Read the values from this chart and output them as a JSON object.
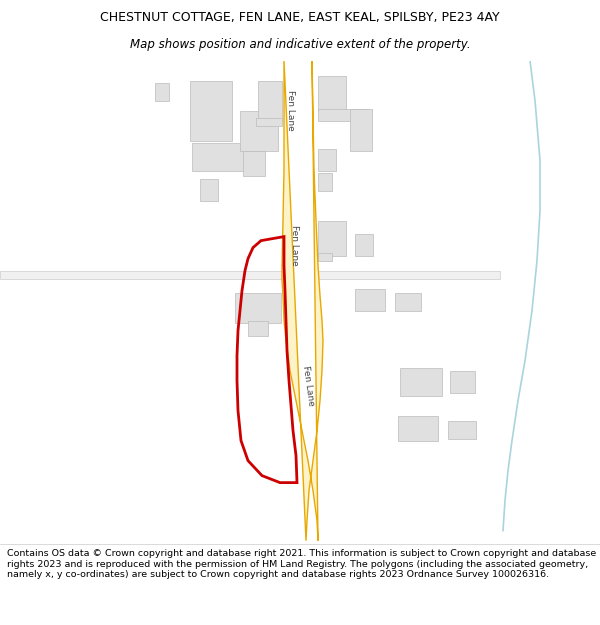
{
  "title": "CHESTNUT COTTAGE, FEN LANE, EAST KEAL, SPILSBY, PE23 4AY",
  "subtitle": "Map shows position and indicative extent of the property.",
  "footer": "Contains OS data © Crown copyright and database right 2021. This information is subject to Crown copyright and database rights 2023 and is reproduced with the permission of HM Land Registry. The polygons (including the associated geometry, namely x, y co-ordinates) are subject to Crown copyright and database rights 2023 Ordnance Survey 100026316.",
  "bg_color": "#ffffff",
  "map_bg": "#ffffff",
  "road_fill": "#fdf3c8",
  "road_edge": "#e8a800",
  "building_fill": "#e0e0e0",
  "building_edge": "#bbbbbb",
  "water_color": "#aad4dc",
  "red_color": "#cc0000",
  "road_label_color": "#444444",
  "title_fontsize": 9.0,
  "subtitle_fontsize": 8.5,
  "footer_fontsize": 6.8,
  "road_label_fontsize": 6.5
}
